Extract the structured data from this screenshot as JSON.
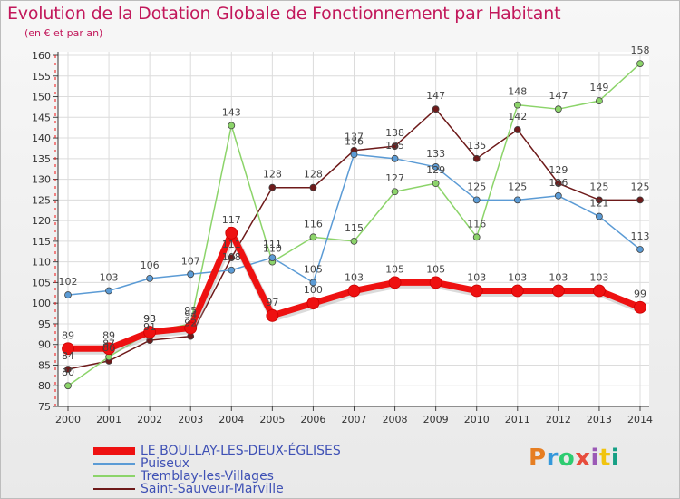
{
  "title": "Evolution de la Dotation Globale de Fonctionnement par Habitant",
  "subtitle": "(en € et par an)",
  "logo": {
    "text": "Proxiti",
    "colors": [
      "#e67e22",
      "#3498db",
      "#2ecc71",
      "#e74c3c",
      "#9b59b6",
      "#f1c40f",
      "#16a085"
    ]
  },
  "chart_data": {
    "type": "line",
    "x": [
      "2000",
      "2001",
      "2002",
      "2003",
      "2004",
      "2005",
      "2006",
      "2007",
      "2008",
      "2009",
      "2010",
      "2011",
      "2012",
      "2013",
      "2014"
    ],
    "ylim": [
      75,
      160
    ],
    "yticks": [
      75,
      80,
      85,
      90,
      95,
      100,
      105,
      110,
      115,
      120,
      125,
      130,
      135,
      140,
      145,
      150,
      155,
      160
    ],
    "grid": true,
    "legend_position": "bottom-left",
    "series": [
      {
        "name": "Saint-Sauveur-Marville",
        "color": "#6e1a1a",
        "width": 1.5,
        "values": [
          84,
          86,
          91,
          92,
          111,
          128,
          128,
          137,
          138,
          147,
          135,
          142,
          129,
          125,
          125
        ]
      },
      {
        "name": "Tremblay-les-Villages",
        "color": "#8cd46a",
        "width": 1.5,
        "values": [
          80,
          87,
          93,
          95,
          143,
          110,
          116,
          115,
          127,
          129,
          116,
          148,
          147,
          149,
          158
        ]
      },
      {
        "name": "Puiseux",
        "color": "#5b9bd5",
        "width": 1.5,
        "values": [
          102,
          103,
          106,
          107,
          108,
          111,
          105,
          136,
          135,
          133,
          125,
          125,
          126,
          121,
          113
        ]
      },
      {
        "name": "LE BOULLAY-LES-DEUX-ÉGLISES",
        "color": "#ee1111",
        "width": 7,
        "values": [
          89,
          89,
          93,
          94,
          117,
          97,
          100,
          103,
          105,
          105,
          103,
          103,
          103,
          103,
          99
        ]
      }
    ],
    "legend": [
      "LE BOULLAY-LES-DEUX-ÉGLISES",
      "Puiseux",
      "Tremblay-les-Villages",
      "Saint-Sauveur-Marville"
    ]
  }
}
